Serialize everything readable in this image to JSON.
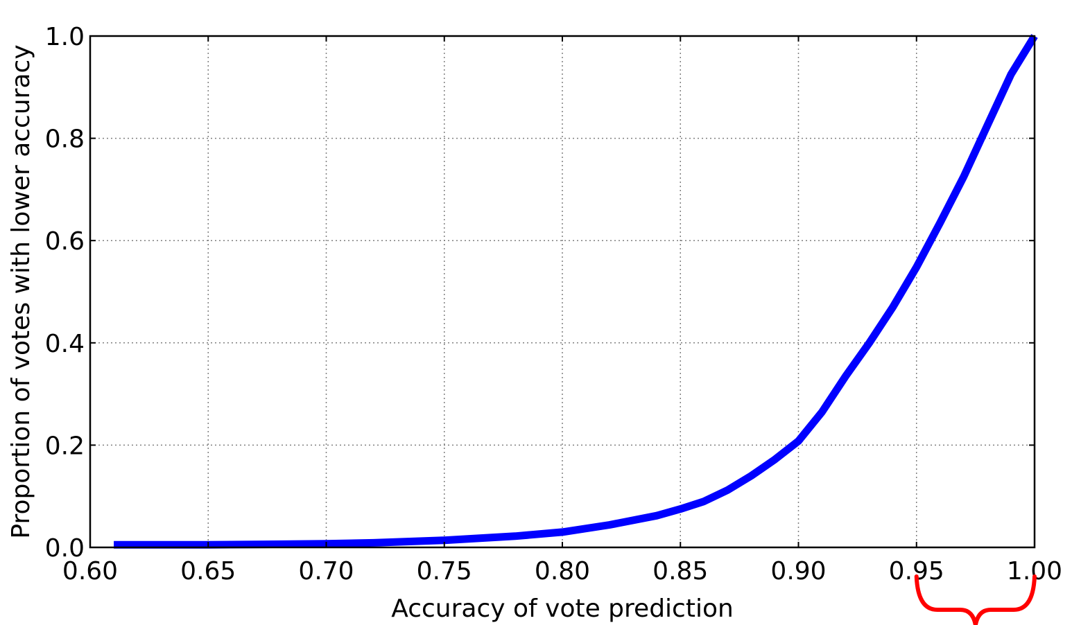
{
  "chart_data": {
    "type": "line",
    "title": "",
    "xlabel": "Accuracy of vote prediction",
    "ylabel": "Proportion of votes with lower accuracy",
    "xlim": [
      0.6,
      1.0
    ],
    "ylim": [
      0.0,
      1.0
    ],
    "xticks": [
      0.6,
      0.65,
      0.7,
      0.75,
      0.8,
      0.85,
      0.9,
      0.95,
      1.0
    ],
    "xtick_labels": [
      "0.60",
      "0.65",
      "0.70",
      "0.75",
      "0.80",
      "0.85",
      "0.90",
      "0.95",
      "1.00"
    ],
    "yticks": [
      0.0,
      0.2,
      0.4,
      0.6,
      0.8,
      1.0
    ],
    "ytick_labels": [
      "0.0",
      "0.2",
      "0.4",
      "0.6",
      "0.8",
      "1.0"
    ],
    "grid": true,
    "grid_style": "dotted",
    "legend": "none",
    "series": [
      {
        "color": "#0000ff",
        "x": [
          0.61,
          0.65,
          0.7,
          0.72,
          0.75,
          0.78,
          0.8,
          0.82,
          0.84,
          0.85,
          0.86,
          0.87,
          0.88,
          0.89,
          0.9,
          0.91,
          0.92,
          0.93,
          0.94,
          0.95,
          0.96,
          0.97,
          0.98,
          0.99,
          1.0
        ],
        "y": [
          0.005,
          0.005,
          0.007,
          0.009,
          0.014,
          0.022,
          0.03,
          0.044,
          0.062,
          0.075,
          0.09,
          0.112,
          0.14,
          0.172,
          0.208,
          0.265,
          0.335,
          0.4,
          0.47,
          0.548,
          0.635,
          0.725,
          0.825,
          0.925,
          1.0
        ]
      }
    ],
    "annotations": [
      {
        "type": "curly-brace",
        "color": "#ff0000",
        "x_range": [
          0.95,
          1.0
        ],
        "placement": "below x-axis"
      }
    ]
  }
}
